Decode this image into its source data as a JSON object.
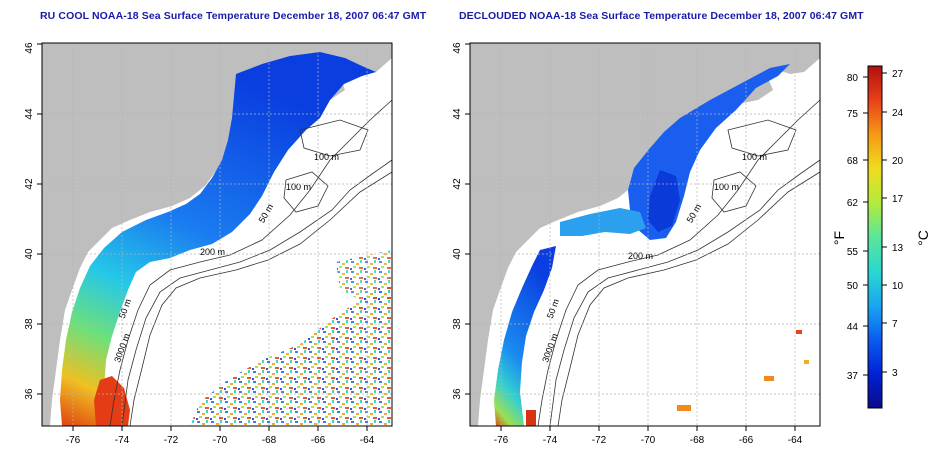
{
  "titles": {
    "left": "RU COOL NOAA-18 Sea Surface Temperature December 18, 2007 06:47 GMT",
    "right": "DECLOUDED NOAA-18 Sea Surface Temperature December 18, 2007 06:47 GMT"
  },
  "axes": {
    "lon_ticks": [
      "-76",
      "-74",
      "-72",
      "-70",
      "-68",
      "-66",
      "-64"
    ],
    "lat_ticks": [
      "36",
      "38",
      "40",
      "42",
      "44",
      "46"
    ]
  },
  "contour_labels": [
    "100 m",
    "100 m",
    "50 m",
    "200 m",
    "50 m",
    "3000 m"
  ],
  "colorbar": {
    "fahrenheit_unit": "°F",
    "celsius_unit": "°C",
    "fahrenheit_ticks": [
      "80",
      "75",
      "68",
      "62",
      "55",
      "50",
      "44",
      "37"
    ],
    "celsius_ticks": [
      "27",
      "24",
      "20",
      "17",
      "13",
      "10",
      "7",
      "3"
    ],
    "colors": [
      "#0a0a8c",
      "#0022d6",
      "#0a5cf0",
      "#19a6f0",
      "#2ad8d0",
      "#5ae69a",
      "#b4ea3c",
      "#f0dc1e",
      "#f59a14",
      "#e8401a",
      "#b0100c"
    ]
  },
  "colors": {
    "land": "#bebebe",
    "ocean_nodata": "#ffffff",
    "grid": "#b4b4b4",
    "title": "#1a1aa8"
  }
}
